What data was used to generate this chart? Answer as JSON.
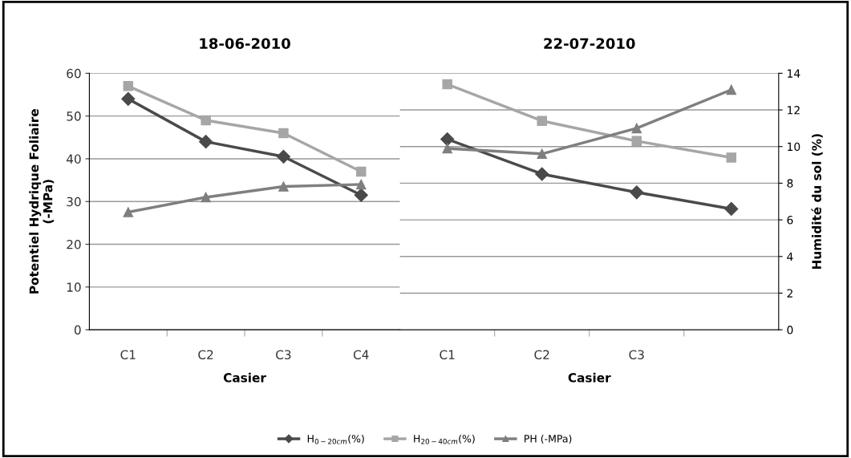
{
  "chart_data": [
    {
      "type": "line",
      "title": "18-06-2010",
      "xlabel": "Casier",
      "ylabel": "Potentiel Hydrique Foliaire\n(-MPa)",
      "categories": [
        "C1",
        "C2",
        "C3",
        "C4"
      ],
      "ylim": [
        0,
        60
      ],
      "yticks": [
        0,
        10,
        20,
        30,
        40,
        50,
        60
      ],
      "grid": "y",
      "legend": "bottom",
      "tick_labels": "xy",
      "series": [
        {
          "name": "H$_{0−20cm}$(%)",
          "color": "#4a4a4a",
          "marker": "diamond",
          "values": [
            54,
            44,
            40.5,
            31.5
          ]
        },
        {
          "name": "H$_{20−40cm}$(%)",
          "color": "#a6a6a6",
          "marker": "square",
          "values": [
            57,
            49,
            46,
            37
          ]
        },
        {
          "name": "PH (-MPa)",
          "color": "#7f7f7f",
          "marker": "triangle",
          "values": [
            27.5,
            31,
            33.5,
            34
          ]
        }
      ]
    },
    {
      "type": "line",
      "title": "22-07-2010",
      "xlabel": "Casier",
      "y2label": "Humidité du sol (%)",
      "categories": [
        "C1",
        "C2",
        "C3",
        null
      ],
      "y2lim": [
        0,
        14
      ],
      "y2ticks": [
        0,
        2,
        4,
        6,
        8,
        10,
        12,
        14
      ],
      "grid": "y",
      "series": [
        {
          "color": "#4a4a4a",
          "marker": "diamond",
          "axis": "y2",
          "values": [
            10.4,
            8.5,
            7.5,
            6.6
          ]
        },
        {
          "color": "#a6a6a6",
          "marker": "square",
          "axis": "y2",
          "values": [
            13.4,
            11.4,
            10.3,
            9.4
          ]
        },
        {
          "color": "#7f7f7f",
          "marker": "triangle",
          "axis": "y2",
          "values": [
            9.9,
            9.6,
            11.0,
            13.1
          ]
        }
      ]
    }
  ]
}
